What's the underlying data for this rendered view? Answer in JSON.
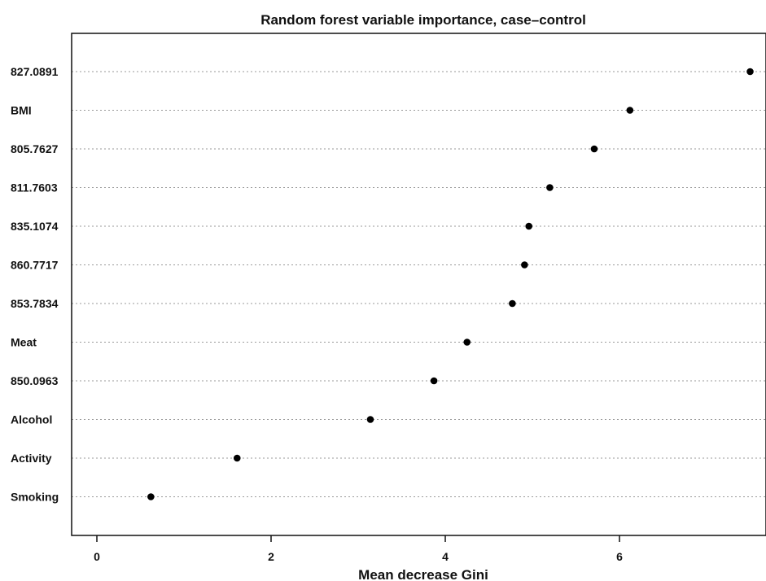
{
  "chart_data": {
    "type": "scatter",
    "title": "Random forest variable importance, case–control",
    "xlabel": "Mean decrease Gini",
    "ylabel": "",
    "xlim": [
      -0.3,
      7.55
    ],
    "xticks": [
      0,
      2,
      4,
      6
    ],
    "categories": [
      "827.0891",
      "BMI",
      "805.7627",
      "811.7603",
      "835.1074",
      "860.7717",
      "853.7834",
      "Meat",
      "850.0963",
      "Alcohol",
      "Activity",
      "Smoking"
    ],
    "values": [
      7.5,
      6.12,
      5.71,
      5.2,
      4.96,
      4.91,
      4.77,
      4.25,
      3.87,
      3.14,
      1.61,
      0.62
    ],
    "grid": "horizontal dotted",
    "dot_color": "#000000"
  }
}
